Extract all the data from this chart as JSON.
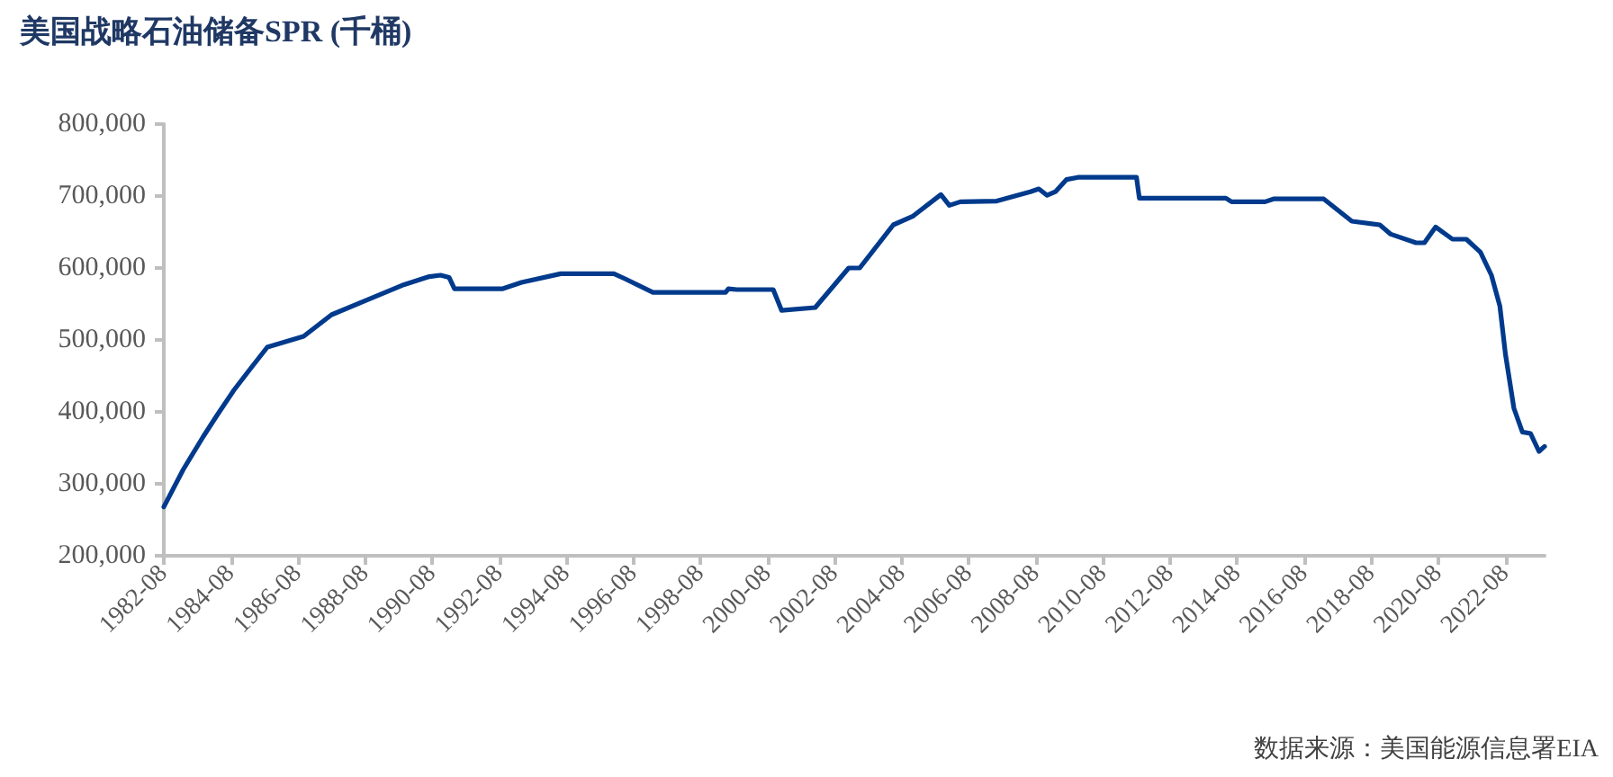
{
  "chart_data": {
    "type": "line",
    "title": "美国战略石油储备SPR (千桶)",
    "annotations": [
      "数据来源：美国能源信息署EIA"
    ],
    "x": [
      "1982-08",
      "1983-03",
      "1983-10",
      "1984-03",
      "1984-09",
      "1985-03",
      "1985-09",
      "1986-10",
      "1987-08",
      "1988-09",
      "1989-10",
      "1990-07",
      "1990-11",
      "1991-02",
      "1991-04",
      "1992-09",
      "1993-04",
      "1994-06",
      "1996-01",
      "1996-05",
      "1997-03",
      "1999-05",
      "1999-06",
      "1999-09",
      "2000-10",
      "2001-01",
      "2002-01",
      "2003-01",
      "2003-05",
      "2004-05",
      "2004-12",
      "2005-10",
      "2006-01",
      "2006-05",
      "2007-06",
      "2008-06",
      "2008-09",
      "2008-12",
      "2009-03",
      "2009-07",
      "2009-11",
      "2011-08",
      "2011-09",
      "2014-04",
      "2014-06",
      "2015-06",
      "2015-09",
      "2017-03",
      "2018-01",
      "2018-11",
      "2019-03",
      "2019-12",
      "2020-03",
      "2020-07",
      "2021-01",
      "2021-06",
      "2021-11",
      "2022-03",
      "2022-06",
      "2022-08",
      "2022-11",
      "2023-02",
      "2023-05",
      "2023-08",
      "2023-10"
    ],
    "series": [
      {
        "color": "#003a8c",
        "values": [
          268000,
          320000,
          365000,
          395000,
          430000,
          460000,
          490000,
          505000,
          535000,
          556000,
          577000,
          588000,
          590000,
          587000,
          571000,
          571000,
          580000,
          592000,
          592000,
          585000,
          566000,
          566000,
          571000,
          570000,
          570000,
          541000,
          545000,
          600000,
          600000,
          660000,
          672000,
          702000,
          687000,
          692000,
          693000,
          706000,
          710000,
          701000,
          706000,
          723000,
          726000,
          726000,
          697000,
          697000,
          692000,
          692000,
          696000,
          696000,
          665000,
          660000,
          647000,
          635000,
          635000,
          657000,
          640000,
          640000,
          622000,
          590000,
          547000,
          480000,
          405000,
          372000,
          370000,
          345000,
          352000
        ]
      }
    ],
    "xlim": [
      "1982-08",
      "2023-10"
    ],
    "xticks": [
      "1982-08",
      "1984-08",
      "1986-08",
      "1988-08",
      "1990-08",
      "1992-08",
      "1994-08",
      "1996-08",
      "1998-08",
      "2000-08",
      "2002-08",
      "2004-08",
      "2006-08",
      "2008-08",
      "2010-08",
      "2012-08",
      "2014-08",
      "2016-08",
      "2018-08",
      "2020-08",
      "2022-08"
    ],
    "ylim": [
      200000,
      800000
    ],
    "yticks": [
      {
        "value": 200000,
        "label": "200,000"
      },
      {
        "value": 300000,
        "label": "300,000"
      },
      {
        "value": 400000,
        "label": "400,000"
      },
      {
        "value": 500000,
        "label": "500,000"
      },
      {
        "value": 600000,
        "label": "600,000"
      },
      {
        "value": 700000,
        "label": "700,000"
      },
      {
        "value": 800000,
        "label": "800,000"
      }
    ],
    "grid": false,
    "marker": "none",
    "line_style": "solid"
  }
}
